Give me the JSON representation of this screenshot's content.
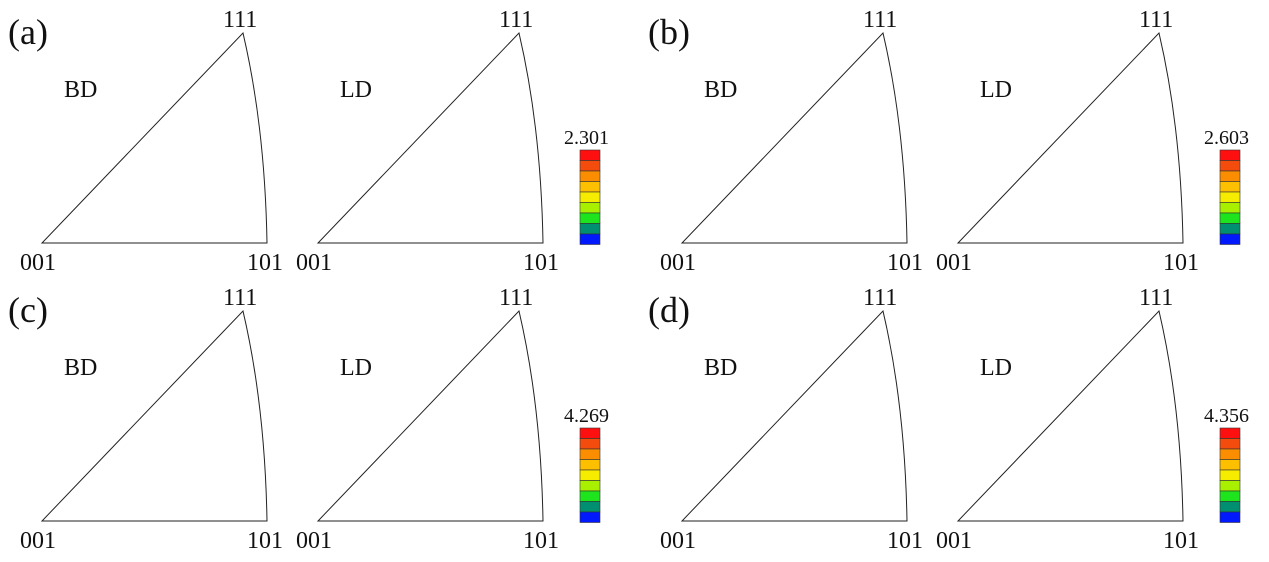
{
  "poles": {
    "p001": "001",
    "p101": "101",
    "p111": "111"
  },
  "legend_colors": [
    "#0019ff",
    "#008f70",
    "#1de41d",
    "#a9f000",
    "#f6ec00",
    "#fcc000",
    "#fb8d00",
    "#f34c0c",
    "#ff1010"
  ],
  "panels": [
    {
      "label": "(a)",
      "scale_max": "2.301",
      "triangles": [
        {
          "direction": "BD",
          "bands": [
            0,
            1,
            2,
            3,
            4,
            5,
            6,
            7,
            8
          ],
          "style": "a-bd"
        },
        {
          "direction": "LD",
          "bands": [
            0,
            1,
            2,
            3,
            4,
            5,
            1
          ],
          "style": "a-ld"
        }
      ]
    },
    {
      "label": "(b)",
      "scale_max": "2.603",
      "triangles": [
        {
          "direction": "BD",
          "bands": [
            0,
            1,
            2,
            3,
            4,
            5,
            6,
            7,
            8
          ],
          "style": "b-bd"
        },
        {
          "direction": "LD",
          "bands": [
            0,
            1,
            2,
            3,
            4,
            5,
            6
          ],
          "style": "b-ld"
        }
      ]
    },
    {
      "label": "(c)",
      "scale_max": "4.269",
      "triangles": [
        {
          "direction": "BD",
          "bands": [
            0,
            1,
            2,
            3,
            4,
            5,
            6,
            7
          ],
          "style": "c-bd"
        },
        {
          "direction": "LD",
          "bands": [
            0,
            1,
            2,
            3,
            4,
            5,
            6
          ],
          "style": "c-ld"
        }
      ]
    },
    {
      "label": "(d)",
      "scale_max": "4.356",
      "triangles": [
        {
          "direction": "BD",
          "bands": [
            0,
            1,
            2,
            3,
            4,
            5,
            6
          ],
          "style": "d-bd"
        },
        {
          "direction": "LD",
          "bands": [
            0,
            1,
            2,
            3,
            4,
            5,
            6,
            7,
            8
          ],
          "style": "d-ld"
        }
      ]
    }
  ]
}
